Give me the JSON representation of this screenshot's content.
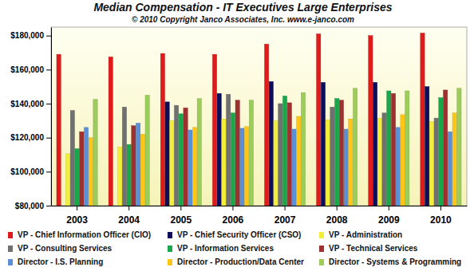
{
  "chart_data": {
    "type": "bar",
    "title": "Median Compensation - IT Executives Large Enterprises",
    "subtitle": "© 2010 Copyright Janco Associates, Inc. www.e-janco.com",
    "categories": [
      "2003",
      "2004",
      "2005",
      "2006",
      "2007",
      "2008",
      "2009",
      "2010"
    ],
    "series": [
      {
        "name": "VP - Chief Information Officer (CIO)",
        "color": "#e01b1b",
        "values": [
          169000,
          167500,
          169500,
          169000,
          175000,
          181000,
          180000,
          181500
        ]
      },
      {
        "name": "VP - Chief Security Officer (CSO)",
        "color": "#0d0d5c",
        "values": [
          null,
          null,
          141000,
          146000,
          153000,
          152500,
          152500,
          150000
        ]
      },
      {
        "name": "VP - Administration",
        "color": "#f2ee3a",
        "values": [
          110500,
          114500,
          130000,
          131000,
          130000,
          130500,
          131500,
          129500
        ]
      },
      {
        "name": "VP - Consulting Services",
        "color": "#707070",
        "values": [
          136000,
          138000,
          139000,
          145500,
          140000,
          138000,
          134500,
          131500
        ]
      },
      {
        "name": "VP - Information Services",
        "color": "#1aa64a",
        "values": [
          113500,
          116000,
          134000,
          134500,
          144500,
          143000,
          147500,
          143500
        ]
      },
      {
        "name": "VP - Technical Services",
        "color": "#9e3030",
        "values": [
          123500,
          127000,
          137500,
          142000,
          140500,
          142000,
          146000,
          148000
        ]
      },
      {
        "name": "Director - I.S. Planning",
        "color": "#5b8fd6",
        "values": [
          126000,
          128500,
          124500,
          125500,
          125000,
          125000,
          126000,
          123500
        ]
      },
      {
        "name": "Director - Production/Data Center",
        "color": "#ffc61a",
        "values": [
          120000,
          122000,
          126000,
          126500,
          132500,
          131000,
          133500,
          134500
        ]
      },
      {
        "name": "Director - Systems & Programming",
        "color": "#9ccc5a",
        "values": [
          142500,
          145000,
          143000,
          142000,
          146500,
          149000,
          147500,
          149000
        ]
      }
    ],
    "ylim": [
      80000,
      185000
    ],
    "yticks": [
      {
        "value": 80000,
        "label": "$80,000"
      },
      {
        "value": 100000,
        "label": "$100,000"
      },
      {
        "value": 120000,
        "label": "$120,000"
      },
      {
        "value": 140000,
        "label": "$140,000"
      },
      {
        "value": 160000,
        "label": "$160,000"
      },
      {
        "value": 180000,
        "label": "$180,000"
      }
    ],
    "grid": false,
    "legend": "bottom"
  }
}
